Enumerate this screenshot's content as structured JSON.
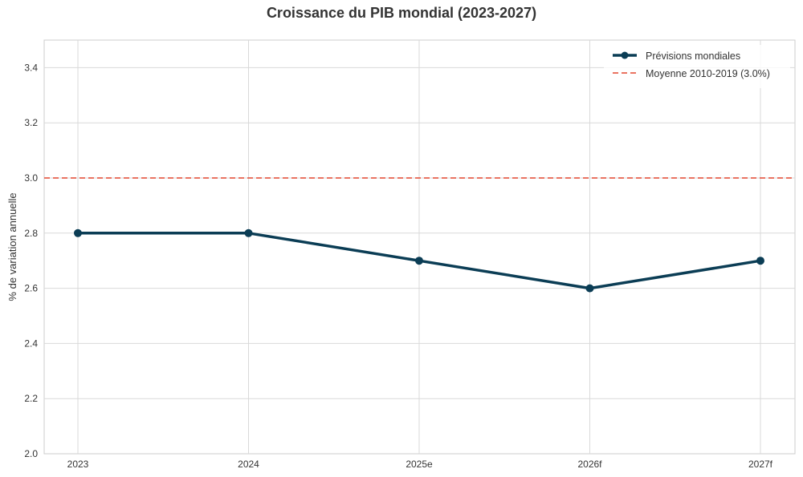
{
  "chart_data": {
    "type": "line",
    "title": "Croissance du PIB mondial (2023-2027)",
    "ylabel": "% de variation annuelle",
    "xlabel": "",
    "categories": [
      "2023",
      "2024",
      "2025e",
      "2026f",
      "2027f"
    ],
    "yticks": [
      "2.0",
      "2.2",
      "2.4",
      "2.6",
      "2.8",
      "3.0",
      "3.2",
      "3.4"
    ],
    "ylim": [
      2.0,
      3.5
    ],
    "grid": true,
    "legend_position": "top-right",
    "series": [
      {
        "name": "Prévisions mondiales",
        "values": [
          2.8,
          2.8,
          2.7,
          2.6,
          2.7
        ],
        "color": "#0b3d55",
        "style": "solid-with-markers"
      }
    ],
    "reference_lines": [
      {
        "name": "Moyenne 2010-2019 (3.0%)",
        "value": 3.0,
        "color": "#e8604c",
        "style": "dashed"
      }
    ]
  }
}
